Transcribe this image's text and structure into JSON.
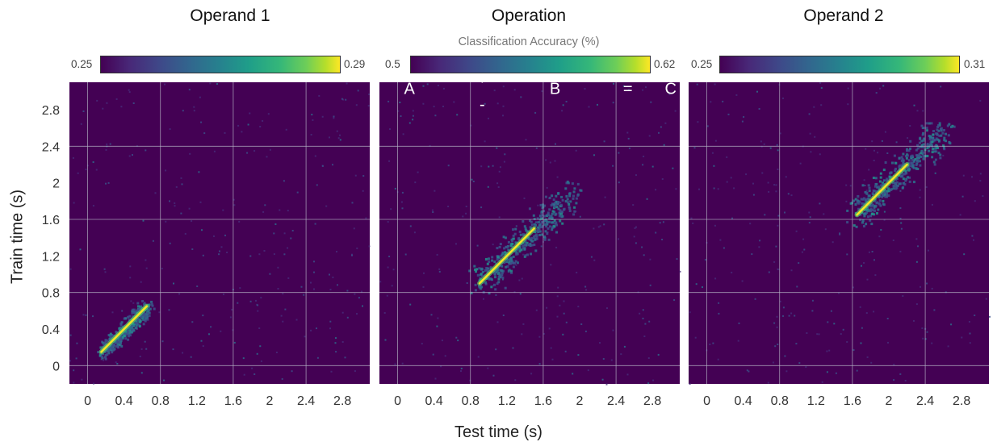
{
  "figure": {
    "xlabel": "Test time (s)",
    "ylabel": "Train time (s)",
    "colorbar_caption": "Classification Accuracy (%)"
  },
  "chart_data": [
    {
      "type": "heatmap",
      "title": "Operand 1",
      "xlabel": "Test time (s)",
      "ylabel": "Train time (s)",
      "x_ticks": [
        "0",
        "0.4",
        "0.8",
        "1.2",
        "1.6",
        "2",
        "2.4",
        "2.8"
      ],
      "y_ticks": [
        "0",
        "0.4",
        "0.8",
        "1.2",
        "1.6",
        "2",
        "2.4",
        "2.8"
      ],
      "xlim": [
        -0.2,
        3.1
      ],
      "ylim": [
        -0.2,
        3.1
      ],
      "colorbar": {
        "min": "0.25",
        "max": "0.29",
        "colormap": "viridis"
      },
      "event_lines": [
        0,
        0.8,
        1.6,
        2.4
      ],
      "diagonal_segment": [
        0.15,
        0.65
      ],
      "peak_region": {
        "x": [
          0.15,
          0.65
        ],
        "y": [
          0.15,
          0.65
        ]
      },
      "labels": []
    },
    {
      "type": "heatmap",
      "title": "Operation",
      "xlabel": "Test time (s)",
      "x_ticks": [
        "0",
        "0.4",
        "0.8",
        "1.2",
        "1.6",
        "2",
        "2.4",
        "2.8"
      ],
      "xlim": [
        -0.2,
        3.1
      ],
      "ylim": [
        -0.2,
        3.1
      ],
      "colorbar": {
        "min": "0.5",
        "max": "0.62",
        "colormap": "viridis"
      },
      "event_lines": [
        0,
        0.8,
        1.6,
        2.4
      ],
      "diagonal_segment": [
        0.9,
        1.5
      ],
      "peak_region": {
        "x": [
          0.9,
          1.9
        ],
        "y": [
          0.9,
          1.9
        ]
      },
      "labels": [
        {
          "text": "A",
          "x": 0.13,
          "y": 2.97
        },
        {
          "text": "+",
          "x": 0.93,
          "y": 3.08
        },
        {
          "text": "-",
          "x": 0.93,
          "y": 2.8
        },
        {
          "text": "B",
          "x": 1.73,
          "y": 2.97
        },
        {
          "text": "=",
          "x": 2.53,
          "y": 2.97
        },
        {
          "text": "C",
          "x": 3.0,
          "y": 2.97
        }
      ]
    },
    {
      "type": "heatmap",
      "title": "Operand 2",
      "xlabel": "Test time (s)",
      "x_ticks": [
        "0",
        "0.4",
        "0.8",
        "1.2",
        "1.6",
        "2",
        "2.4",
        "2.8"
      ],
      "xlim": [
        -0.2,
        3.1
      ],
      "ylim": [
        -0.2,
        3.1
      ],
      "colorbar": {
        "min": "0.25",
        "max": "0.31",
        "colormap": "viridis"
      },
      "event_lines": [
        0,
        0.8,
        1.6,
        2.4
      ],
      "diagonal_segment": [
        1.65,
        2.2
      ],
      "peak_region": {
        "x": [
          1.65,
          2.6
        ],
        "y": [
          1.65,
          2.6
        ]
      },
      "labels": []
    }
  ]
}
